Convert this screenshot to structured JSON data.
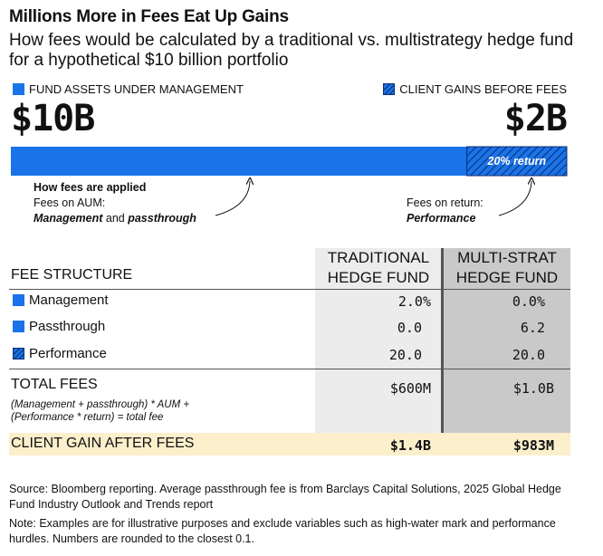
{
  "header": {
    "title": "Millions More in Fees Eat Up Gains",
    "subtitle": "How fees would be calculated by a traditional vs. multistrategy hedge fund for a hypothetical $10 billion portfolio"
  },
  "legend": {
    "aum_label": "FUND ASSETS UNDER MANAGEMENT",
    "gains_label": "CLIENT GAINS BEFORE FEES"
  },
  "big_values": {
    "aum": "$10B",
    "gains": "$2B"
  },
  "bar": {
    "return_label": "20% return",
    "colors": {
      "aum": "#1a73e8",
      "gains": "#1a73e8",
      "hatch": "#0b2d6e"
    }
  },
  "annotations": {
    "applied_heading": "How fees are applied",
    "aum_line": "Fees on AUM:",
    "aum_detail_a": "Management",
    "aum_detail_and": " and ",
    "aum_detail_b": "passthrough",
    "return_line": "Fees on return:",
    "return_detail": "Performance"
  },
  "table": {
    "fee_structure_label": "FEE STRUCTURE",
    "col1": [
      "TRADITIONAL",
      "HEDGE FUND"
    ],
    "col2": [
      "MULTI-STRAT",
      "HEDGE FUND"
    ],
    "rows": [
      {
        "label": "Management",
        "trad": "2.0%",
        "multi": "0.0%"
      },
      {
        "label": "Passthrough",
        "trad": "0.0",
        "multi": "6.2"
      },
      {
        "label": "Performance",
        "trad": "20.0",
        "multi": "20.0"
      }
    ],
    "total_label": "TOTAL FEES",
    "formula_1": "(Management + passthrough) * AUM +",
    "formula_2": "(Performance * return) = total fee",
    "total_trad": "$600M",
    "total_multi": "$1.0B",
    "gain_label": "CLIENT GAIN AFTER FEES",
    "gain_trad": "$1.4B",
    "gain_multi": "$983M"
  },
  "footer": {
    "source": "Source: Bloomberg reporting. Average passthrough fee is from Barclays Capital Solutions, 2025 Global Hedge Fund Industry Outlook and Trends report",
    "note": "Note: Examples are for illustrative purposes and exclude variables such as high-water mark and performance hurdles. Numbers are rounded to the closest 0.1."
  },
  "chart_data": {
    "type": "bar",
    "orientation": "horizontal-stacked",
    "categories": [
      "Portfolio"
    ],
    "series": [
      {
        "name": "FUND ASSETS UNDER MANAGEMENT",
        "values": [
          10
        ]
      },
      {
        "name": "CLIENT GAINS BEFORE FEES",
        "values": [
          2
        ]
      }
    ],
    "unit": "$B",
    "annotation": "20% return"
  }
}
